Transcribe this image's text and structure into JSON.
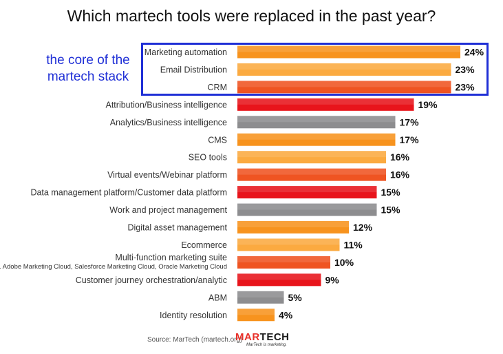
{
  "title": "Which martech tools were replaced in the past year?",
  "annotation": {
    "line1": "the core of the",
    "line2": "martech stack"
  },
  "source": "Source: MarTech (martech.org)",
  "logo": {
    "text_part1": "MAR",
    "text_part2": "TECH",
    "tagline": "MarTech is marketing."
  },
  "colors": {
    "orange": "#f7931e",
    "light_orange": "#fbaa40",
    "dark_orange": "#ef5422",
    "red": "#e8141b",
    "gray": "#8d8d8f",
    "box": "#1f2fd6"
  },
  "chart_data": {
    "type": "bar",
    "orientation": "horizontal",
    "title": "Which martech tools were replaced in the past year?",
    "value_suffix": "%",
    "xlim": [
      0,
      24
    ],
    "categories": [
      "Marketing automation",
      "Email Distribution",
      "CRM",
      "Attribution/Business intelligence",
      "Analytics/Business intelligence",
      "CMS",
      "SEO tools",
      "Virtual events/Webinar platform",
      "Data management platform/Customer data platform",
      "Work and project management",
      "Digital asset management",
      "Ecommerce",
      "Multi-function marketing suite",
      "Customer journey orchestration/analytic",
      "ABM",
      "Identity resolution"
    ],
    "sublabels": {
      "12": "e.g. Adobe Marketing Cloud, Salesforce Marketing Cloud, Oracle Marketing Cloud"
    },
    "values": [
      24,
      23,
      23,
      19,
      17,
      17,
      16,
      16,
      15,
      15,
      12,
      11,
      10,
      9,
      5,
      4
    ],
    "bar_colors": [
      "orange",
      "light_orange",
      "dark_orange",
      "red",
      "gray",
      "orange",
      "light_orange",
      "dark_orange",
      "red",
      "gray",
      "orange",
      "light_orange",
      "dark_orange",
      "red",
      "gray",
      "orange"
    ]
  }
}
